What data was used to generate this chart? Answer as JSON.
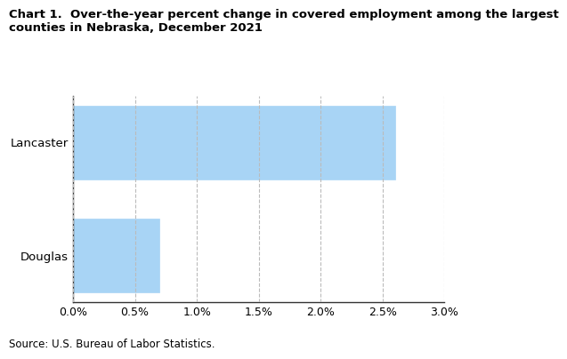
{
  "title_line1": "Chart 1.  Over-the-year percent change in covered employment among the largest",
  "title_line2": "counties in Nebraska, December 2021",
  "categories": [
    "Douglas",
    "Lancaster"
  ],
  "values": [
    0.007,
    0.026
  ],
  "bar_color": "#a8d4f5",
  "bar_edgecolor": "#a8d4f5",
  "xlim": [
    0,
    0.03
  ],
  "xticks": [
    0.0,
    0.005,
    0.01,
    0.015,
    0.02,
    0.025,
    0.03
  ],
  "xtick_labels": [
    "0.0%",
    "0.5%",
    "1.0%",
    "1.5%",
    "2.0%",
    "2.5%",
    "3.0%"
  ],
  "source": "Source: U.S. Bureau of Labor Statistics.",
  "title_fontsize": 9.5,
  "tick_fontsize": 9.0,
  "ylabel_fontsize": 9.5,
  "source_fontsize": 8.5,
  "bar_height": 0.65,
  "grid_color": "#bbbbbb",
  "spine_color": "#333333"
}
